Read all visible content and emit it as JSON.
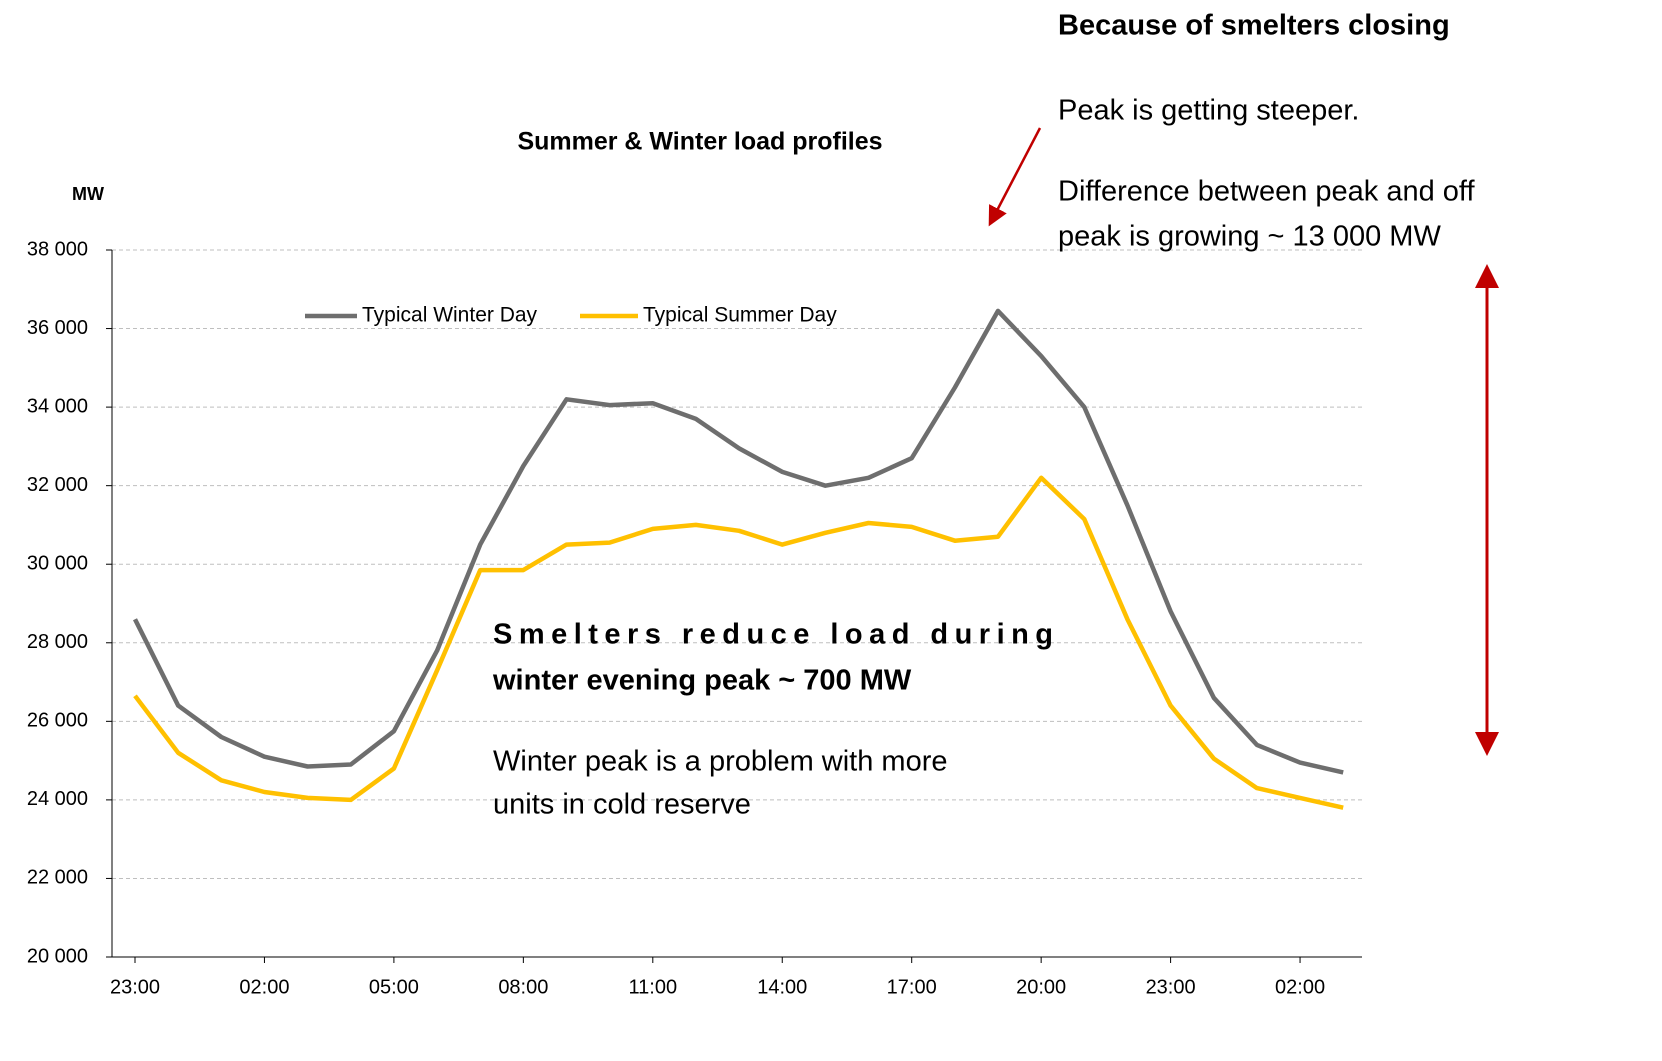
{
  "chart_data": {
    "type": "line",
    "title": "Summer & Winter load profiles",
    "y_label": "MW",
    "categories": [
      "23:00",
      null,
      null,
      "02:00",
      null,
      null,
      "05:00",
      null,
      null,
      "08:00",
      null,
      null,
      "11:00",
      null,
      null,
      "14:00",
      null,
      null,
      "17:00",
      null,
      null,
      "20:00",
      null,
      null,
      "23:00",
      null,
      null,
      "02:00",
      null
    ],
    "series": [
      {
        "name": "Typical Winter Day",
        "color": "#6e6e6e",
        "values": [
          28600,
          26400,
          25600,
          25100,
          24850,
          24900,
          25750,
          27800,
          30500,
          32500,
          34200,
          34050,
          34100,
          33700,
          32950,
          32350,
          32000,
          32200,
          32700,
          34500,
          36450,
          35300,
          34000,
          31500,
          28800,
          26600,
          25400,
          24950,
          24700
        ]
      },
      {
        "name": "Typical Summer Day",
        "color": "#ffc000",
        "values": [
          26650,
          25200,
          24500,
          24200,
          24050,
          24000,
          24800,
          27300,
          29850,
          29850,
          30500,
          30550,
          30900,
          31000,
          30850,
          30500,
          30800,
          31050,
          30950,
          30600,
          30700,
          32200,
          31150,
          28600,
          26400,
          25050,
          24300,
          24050,
          23800
        ]
      }
    ],
    "ylim": [
      20000,
      38000
    ],
    "yticks": [
      {
        "value": 20000,
        "label": "20 000"
      },
      {
        "value": 22000,
        "label": "22 000"
      },
      {
        "value": 24000,
        "label": "24 000"
      },
      {
        "value": 26000,
        "label": "26 000"
      },
      {
        "value": 28000,
        "label": "28 000"
      },
      {
        "value": 30000,
        "label": "30 000"
      },
      {
        "value": 32000,
        "label": "32 000"
      },
      {
        "value": 34000,
        "label": "34 000"
      },
      {
        "value": 36000,
        "label": "36 000"
      },
      {
        "value": 38000,
        "label": "38 000"
      }
    ],
    "grid": true,
    "legend": "top",
    "annotations": [
      {
        "lines": [
          "Because of smelters closing"
        ]
      },
      {
        "lines": [
          "Peak is getting steeper."
        ]
      },
      {
        "lines": [
          "Difference between peak and off",
          "peak is growing ~ 13 000 MW"
        ]
      },
      {
        "lines": [
          "Smelters reduce load during",
          "winter evening peak ~ 700 MW"
        ]
      },
      {
        "lines": [
          "Winter peak is a problem with more",
          "units in cold reserve"
        ]
      }
    ]
  }
}
